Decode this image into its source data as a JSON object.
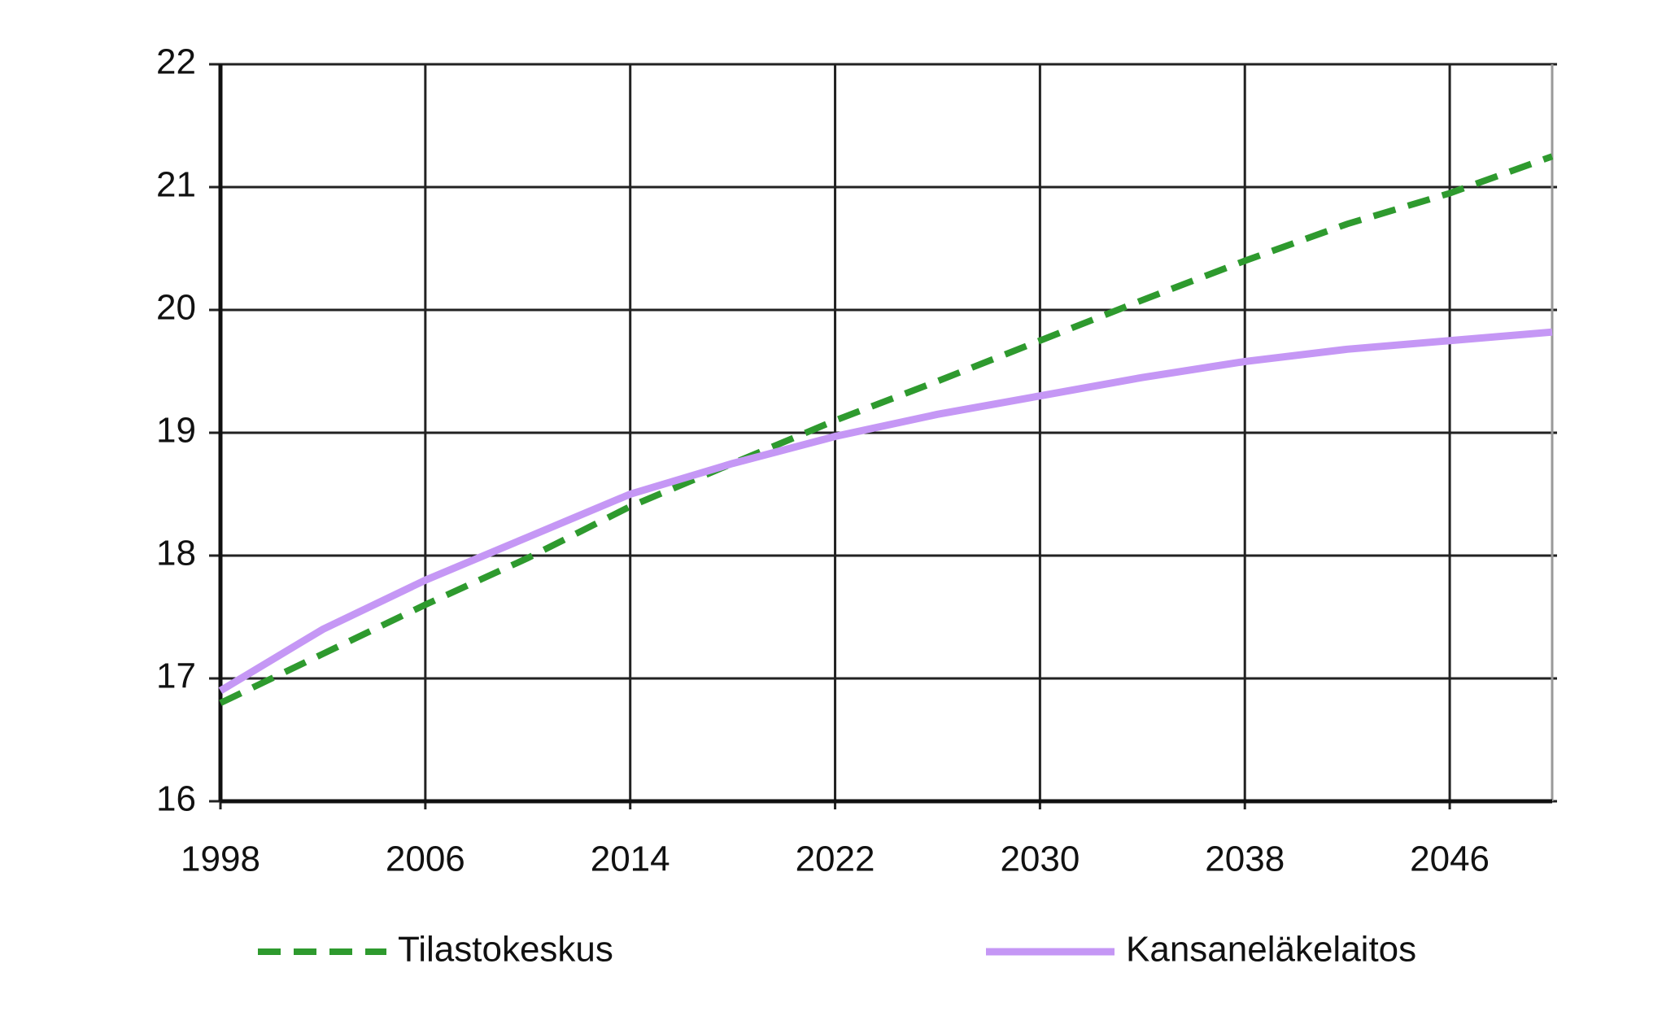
{
  "chart_data": {
    "type": "line",
    "x": [
      1998,
      2002,
      2006,
      2010,
      2014,
      2018,
      2022,
      2026,
      2030,
      2034,
      2038,
      2042,
      2046,
      2050
    ],
    "series": [
      {
        "name": "Tilastokeskus",
        "color": "#2e9a2e",
        "dashed": true,
        "values": [
          16.8,
          17.2,
          17.6,
          17.98,
          18.4,
          18.75,
          19.1,
          19.42,
          19.75,
          20.08,
          20.4,
          20.7,
          20.95,
          21.25
        ]
      },
      {
        "name": "Kansaneläkelaitos",
        "color": "#c597f5",
        "dashed": false,
        "values": [
          16.9,
          17.4,
          17.8,
          18.15,
          18.5,
          18.75,
          18.97,
          19.15,
          19.3,
          19.45,
          19.58,
          19.68,
          19.75,
          19.82
        ]
      }
    ],
    "xlim": [
      1998,
      2050
    ],
    "xticks": [
      1998,
      2006,
      2014,
      2022,
      2030,
      2038,
      2046
    ],
    "ylim": [
      16,
      22
    ],
    "yticks": [
      16,
      17,
      18,
      19,
      20,
      21,
      22
    ],
    "grid": true
  }
}
